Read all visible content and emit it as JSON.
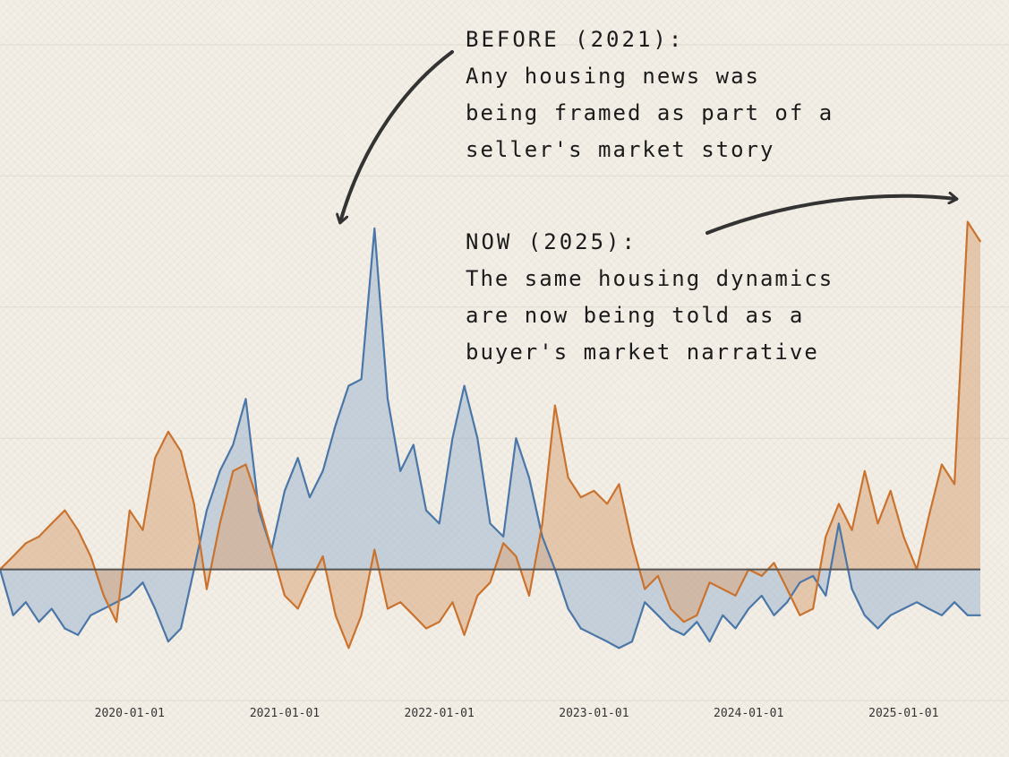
{
  "colors": {
    "background": "#f4efe6",
    "series_blue_line": "#4a76a8",
    "series_blue_fill": "#9fb6cf",
    "series_orange_line": "#c9732f",
    "series_orange_fill": "#d8a57c",
    "zero_line": "#555555",
    "annotation_arrow": "#333333"
  },
  "annotations": {
    "before": {
      "heading": "BEFORE (2021):",
      "lines": [
        "Any housing news was",
        "being framed as part of a",
        "seller's market story"
      ]
    },
    "now": {
      "heading": "NOW (2025):",
      "lines": [
        "The same housing dynamics",
        "are now being told as a",
        "buyer's market narrative"
      ]
    }
  },
  "chart_data": {
    "type": "area",
    "x_ticks": [
      "2020-01-01",
      "2021-01-01",
      "2022-01-01",
      "2023-01-01",
      "2024-01-01",
      "2025-01-01"
    ],
    "x_range": [
      "2019-03-01",
      "2025-07-01"
    ],
    "y_range": [
      -1.0,
      4.0
    ],
    "grid": "horizontal",
    "legend": "none",
    "series": [
      {
        "color": "blue",
        "x": [
          "2019-03-01",
          "2019-04-01",
          "2019-05-01",
          "2019-06-01",
          "2019-07-01",
          "2019-08-01",
          "2019-09-01",
          "2019-10-01",
          "2019-11-01",
          "2019-12-01",
          "2020-01-01",
          "2020-02-01",
          "2020-03-01",
          "2020-04-01",
          "2020-05-01",
          "2020-06-01",
          "2020-07-01",
          "2020-08-01",
          "2020-09-01",
          "2020-10-01",
          "2020-11-01",
          "2020-12-01",
          "2021-01-01",
          "2021-02-01",
          "2021-03-01",
          "2021-04-01",
          "2021-05-01",
          "2021-06-01",
          "2021-07-01",
          "2021-08-01",
          "2021-09-01",
          "2021-10-01",
          "2021-11-01",
          "2021-12-01",
          "2022-01-01",
          "2022-02-01",
          "2022-03-01",
          "2022-04-01",
          "2022-05-01",
          "2022-06-01",
          "2022-07-01",
          "2022-08-01",
          "2022-09-01",
          "2022-10-01",
          "2022-11-01",
          "2022-12-01",
          "2023-01-01",
          "2023-02-01",
          "2023-03-01",
          "2023-04-01",
          "2023-05-01",
          "2023-06-01",
          "2023-07-01",
          "2023-08-01",
          "2023-09-01",
          "2023-10-01",
          "2023-11-01",
          "2023-12-01",
          "2024-01-01",
          "2024-02-01",
          "2024-03-01",
          "2024-04-01",
          "2024-05-01",
          "2024-06-01",
          "2024-07-01",
          "2024-08-01",
          "2024-09-01",
          "2024-10-01",
          "2024-11-01",
          "2024-12-01",
          "2025-01-01",
          "2025-02-01",
          "2025-03-01",
          "2025-04-01",
          "2025-05-01",
          "2025-06-01",
          "2025-07-01"
        ],
        "values": [
          0.0,
          -0.35,
          -0.25,
          -0.4,
          -0.3,
          -0.45,
          -0.5,
          -0.35,
          -0.3,
          -0.25,
          -0.2,
          -0.1,
          -0.3,
          -0.55,
          -0.45,
          0.0,
          0.45,
          0.75,
          0.95,
          1.3,
          0.45,
          0.15,
          0.6,
          0.85,
          0.55,
          0.75,
          1.1,
          1.4,
          1.45,
          2.6,
          1.3,
          0.75,
          0.95,
          0.45,
          0.35,
          1.0,
          1.4,
          1.0,
          0.35,
          0.25,
          1.0,
          0.7,
          0.25,
          0.0,
          -0.3,
          -0.45,
          -0.5,
          -0.55,
          -0.6,
          -0.55,
          -0.25,
          -0.35,
          -0.45,
          -0.5,
          -0.4,
          -0.55,
          -0.35,
          -0.45,
          -0.3,
          -0.2,
          -0.35,
          -0.25,
          -0.1,
          -0.05,
          -0.2,
          0.35,
          -0.15,
          -0.35,
          -0.45,
          -0.35,
          -0.3,
          -0.25,
          -0.3,
          -0.35,
          -0.25,
          -0.35,
          -0.35
        ]
      },
      {
        "color": "orange",
        "x": [
          "2019-03-01",
          "2019-04-01",
          "2019-05-01",
          "2019-06-01",
          "2019-07-01",
          "2019-08-01",
          "2019-09-01",
          "2019-10-01",
          "2019-11-01",
          "2019-12-01",
          "2020-01-01",
          "2020-02-01",
          "2020-03-01",
          "2020-04-01",
          "2020-05-01",
          "2020-06-01",
          "2020-07-01",
          "2020-08-01",
          "2020-09-01",
          "2020-10-01",
          "2020-11-01",
          "2020-12-01",
          "2021-01-01",
          "2021-02-01",
          "2021-03-01",
          "2021-04-01",
          "2021-05-01",
          "2021-06-01",
          "2021-07-01",
          "2021-08-01",
          "2021-09-01",
          "2021-10-01",
          "2021-11-01",
          "2021-12-01",
          "2022-01-01",
          "2022-02-01",
          "2022-03-01",
          "2022-04-01",
          "2022-05-01",
          "2022-06-01",
          "2022-07-01",
          "2022-08-01",
          "2022-09-01",
          "2022-10-01",
          "2022-11-01",
          "2022-12-01",
          "2023-01-01",
          "2023-02-01",
          "2023-03-01",
          "2023-04-01",
          "2023-05-01",
          "2023-06-01",
          "2023-07-01",
          "2023-08-01",
          "2023-09-01",
          "2023-10-01",
          "2023-11-01",
          "2023-12-01",
          "2024-01-01",
          "2024-02-01",
          "2024-03-01",
          "2024-04-01",
          "2024-05-01",
          "2024-06-01",
          "2024-07-01",
          "2024-08-01",
          "2024-09-01",
          "2024-10-01",
          "2024-11-01",
          "2024-12-01",
          "2025-01-01",
          "2025-02-01",
          "2025-03-01",
          "2025-04-01",
          "2025-05-01",
          "2025-06-01",
          "2025-07-01"
        ],
        "values": [
          0.0,
          0.1,
          0.2,
          0.25,
          0.35,
          0.45,
          0.3,
          0.1,
          -0.2,
          -0.4,
          0.45,
          0.3,
          0.85,
          1.05,
          0.9,
          0.5,
          -0.15,
          0.35,
          0.75,
          0.8,
          0.5,
          0.15,
          -0.2,
          -0.3,
          -0.1,
          0.1,
          -0.35,
          -0.6,
          -0.35,
          0.15,
          -0.3,
          -0.25,
          -0.35,
          -0.45,
          -0.4,
          -0.25,
          -0.5,
          -0.2,
          -0.1,
          0.2,
          0.1,
          -0.2,
          0.35,
          1.25,
          0.7,
          0.55,
          0.6,
          0.5,
          0.65,
          0.2,
          -0.15,
          -0.05,
          -0.3,
          -0.4,
          -0.35,
          -0.1,
          -0.15,
          -0.2,
          0.0,
          -0.05,
          0.05,
          -0.15,
          -0.35,
          -0.3,
          0.25,
          0.5,
          0.3,
          0.75,
          0.35,
          0.6,
          0.25,
          0.0,
          0.4,
          0.8,
          0.65,
          2.65,
          2.5
        ]
      }
    ]
  }
}
